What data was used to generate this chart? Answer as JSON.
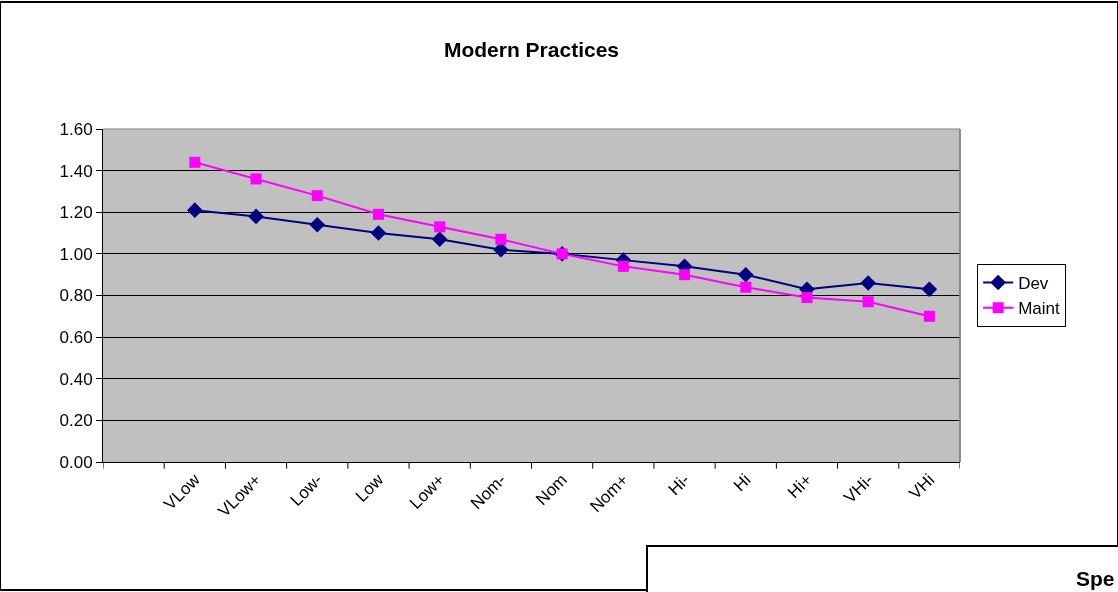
{
  "chart_data": {
    "type": "line",
    "title": "Modern Practices",
    "categories": [
      null,
      "VLow",
      "VLow+",
      "Low-",
      "Low",
      "Low+",
      "Nom-",
      "Nom",
      "Nom+",
      "Hi-",
      "Hi",
      "Hi+",
      "VHi-",
      "VHi"
    ],
    "series": [
      {
        "name": "Dev",
        "color": "#000080",
        "marker": "diamond",
        "values": [
          null,
          1.21,
          1.18,
          1.14,
          1.1,
          1.07,
          1.02,
          1.0,
          0.97,
          0.94,
          0.9,
          0.83,
          0.86,
          0.83
        ]
      },
      {
        "name": "Maint",
        "color": "#ff00ff",
        "marker": "square",
        "values": [
          null,
          1.44,
          1.36,
          1.28,
          1.19,
          1.13,
          1.07,
          1.0,
          0.94,
          0.9,
          0.84,
          0.79,
          0.77,
          0.7
        ]
      }
    ],
    "ylim": [
      0,
      1.6
    ],
    "yticks": [
      {
        "value": 0,
        "label": "0.00"
      },
      {
        "value": 0.2,
        "label": "0.20"
      },
      {
        "value": 0.4,
        "label": "0.40"
      },
      {
        "value": 0.6,
        "label": "0.60"
      },
      {
        "value": 0.8,
        "label": "0.80"
      },
      {
        "value": 1.0,
        "label": "1.00"
      },
      {
        "value": 1.2,
        "label": "1.20"
      },
      {
        "value": 1.4,
        "label": "1.40"
      },
      {
        "value": 1.6,
        "label": "1.60"
      }
    ],
    "grid": "y",
    "legend": "right",
    "line_style": "solid",
    "annotations": [
      "Spe"
    ]
  }
}
